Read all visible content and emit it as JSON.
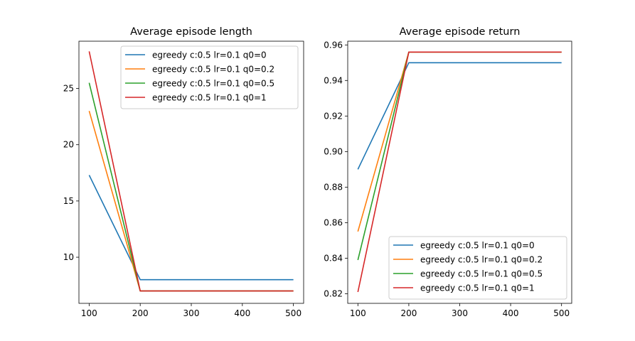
{
  "chart_data": [
    {
      "type": "line",
      "title": "Average episode length",
      "xlabel": "",
      "ylabel": "",
      "x": [
        100,
        200,
        500
      ],
      "xlim": [
        80,
        520
      ],
      "ylim": [
        5.9,
        29.2
      ],
      "xticks": [
        100,
        200,
        300,
        400,
        500
      ],
      "yticks": [
        10,
        15,
        20,
        25
      ],
      "legend_position": "upper right",
      "grid": false,
      "series": [
        {
          "name": "egreedy c:0.5 lr=0.1 q0=0",
          "color": "#1f77b4",
          "values": [
            17.3,
            8.0,
            8.0
          ]
        },
        {
          "name": "egreedy c:0.5 lr=0.1 q0=0.2",
          "color": "#ff7f0e",
          "values": [
            23.0,
            7.0,
            7.0
          ]
        },
        {
          "name": "egreedy c:0.5 lr=0.1 q0=0.5",
          "color": "#2ca02c",
          "values": [
            25.5,
            7.0,
            7.0
          ]
        },
        {
          "name": "egreedy c:0.5 lr=0.1 q0=1",
          "color": "#d62728",
          "values": [
            28.3,
            7.0,
            7.0
          ]
        }
      ]
    },
    {
      "type": "line",
      "title": "Average episode return",
      "xlabel": "",
      "ylabel": "",
      "x": [
        100,
        200,
        500
      ],
      "xlim": [
        80,
        520
      ],
      "ylim": [
        0.8146,
        0.9621
      ],
      "xticks": [
        100,
        200,
        300,
        400,
        500
      ],
      "yticks": [
        0.82,
        0.84,
        0.86,
        0.88,
        0.9,
        0.92,
        0.94,
        0.96
      ],
      "ytick_labels": [
        "0.82",
        "0.84",
        "0.86",
        "0.88",
        "0.90",
        "0.92",
        "0.94",
        "0.96"
      ],
      "legend_position": "lower right",
      "grid": false,
      "series": [
        {
          "name": "egreedy c:0.5 lr=0.1 q0=0",
          "color": "#1f77b4",
          "values": [
            0.89,
            0.95,
            0.95
          ]
        },
        {
          "name": "egreedy c:0.5 lr=0.1 q0=0.2",
          "color": "#ff7f0e",
          "values": [
            0.855,
            0.956,
            0.956
          ]
        },
        {
          "name": "egreedy c:0.5 lr=0.1 q0=0.5",
          "color": "#2ca02c",
          "values": [
            0.839,
            0.956,
            0.956
          ]
        },
        {
          "name": "egreedy c:0.5 lr=0.1 q0=1",
          "color": "#d62728",
          "values": [
            0.821,
            0.956,
            0.956
          ]
        }
      ]
    }
  ]
}
